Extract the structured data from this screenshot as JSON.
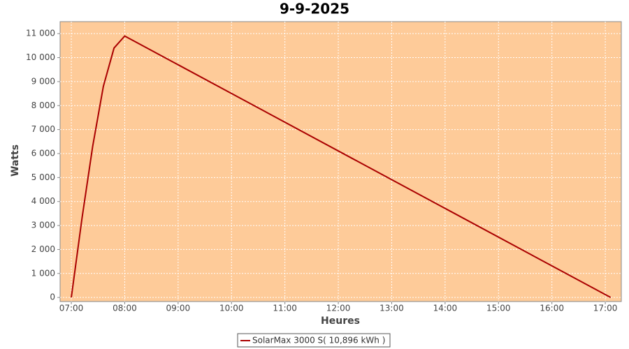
{
  "chart_data": {
    "type": "line",
    "title": "9-9-2025",
    "x_label": "Heures",
    "y_label": "Watts",
    "x": [
      7.0,
      7.2,
      7.4,
      7.6,
      7.8,
      8.0,
      17.1
    ],
    "series": [
      {
        "name": "SolarMax 3000 S( 10,896 kWh )",
        "color": "#aa0000",
        "values": [
          0,
          3300,
          6300,
          8800,
          10400,
          10900,
          0
        ]
      }
    ],
    "xlim": [
      6.79,
      17.3
    ],
    "ylim": [
      -170,
      11500
    ],
    "xticks": [
      {
        "value": 7,
        "label": "07:00"
      },
      {
        "value": 8,
        "label": "08:00"
      },
      {
        "value": 9,
        "label": "09:00"
      },
      {
        "value": 10,
        "label": "10:00"
      },
      {
        "value": 11,
        "label": "11:00"
      },
      {
        "value": 12,
        "label": "12:00"
      },
      {
        "value": 13,
        "label": "13:00"
      },
      {
        "value": 14,
        "label": "14:00"
      },
      {
        "value": 15,
        "label": "15:00"
      },
      {
        "value": 16,
        "label": "16:00"
      },
      {
        "value": 17,
        "label": "17:00"
      }
    ],
    "yticks": [
      0,
      {
        "value": 1000,
        "label": "1 000"
      },
      {
        "value": 2000,
        "label": "2 000"
      },
      {
        "value": 3000,
        "label": "3 000"
      },
      {
        "value": 4000,
        "label": "4 000"
      },
      {
        "value": 5000,
        "label": "5 000"
      },
      {
        "value": 6000,
        "label": "6 000"
      },
      {
        "value": 7000,
        "label": "7 000"
      },
      {
        "value": 8000,
        "label": "8 000"
      },
      {
        "value": 9000,
        "label": "9 000"
      },
      {
        "value": 10000,
        "label": "10 000"
      },
      {
        "value": 11000,
        "label": "11 000"
      }
    ],
    "grid": true,
    "plot_background": "#fecb99",
    "legend": "bottom"
  }
}
